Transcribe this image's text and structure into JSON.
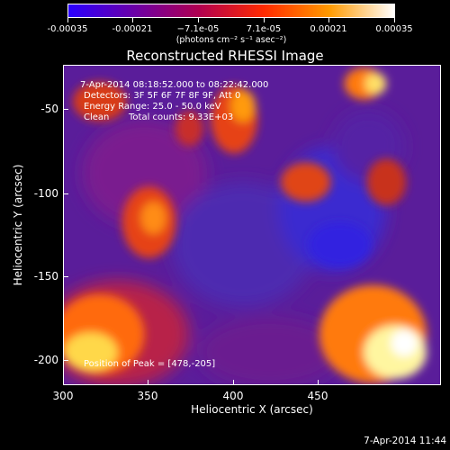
{
  "colorbar": {
    "labels": [
      "-0.00035",
      "-0.00021",
      "−7.1e-05",
      "7.1e-05",
      "0.00021",
      "0.00035"
    ],
    "units": "(photons cm⁻² s⁻¹ asec⁻²)",
    "gradient_colors": [
      "#2a00ff",
      "#6a00a8",
      "#b00050",
      "#ff2a00",
      "#ff9a00",
      "#ffffff"
    ]
  },
  "plot": {
    "title": "Reconstructed RHESSI Image",
    "info_time": "7-Apr-2014 08:18:52.000 to 08:22:42.000",
    "info_detectors": "Detectors: 3F 5F 6F 7F 8F 9F, Att 0",
    "info_energy": "Energy Range: 25.0 - 50.0 keV",
    "info_clean": "Clean",
    "info_counts": "Total counts: 9.33E+03",
    "peak_text": "Position of Peak = [478,-205]"
  },
  "axes": {
    "x_title": "Heliocentric X (arcsec)",
    "y_title": "Heliocentric Y (arcsec)",
    "x_ticks": [
      "300",
      "350",
      "400",
      "450"
    ],
    "y_ticks": [
      "-50",
      "-100",
      "-150",
      "-200"
    ]
  },
  "footer": {
    "date": "7-Apr-2014 11:44"
  }
}
